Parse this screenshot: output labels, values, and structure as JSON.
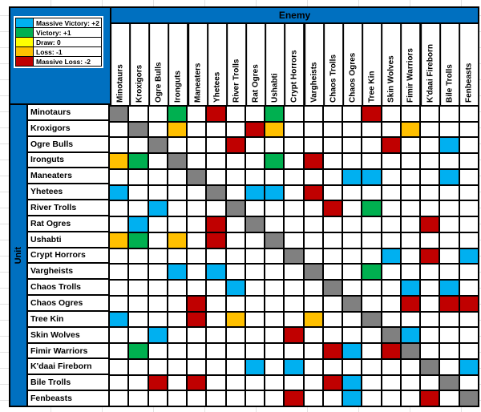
{
  "headers": {
    "enemy": "Enemy",
    "unit": "Unit"
  },
  "legend": {
    "items": [
      {
        "label": "Massive Victory: +2",
        "color": "#00B0F0"
      },
      {
        "label": "Victory: +1",
        "color": "#00B050"
      },
      {
        "label": "Draw: 0",
        "color": "#FFFF00"
      },
      {
        "label": "Loss: -1",
        "color": "#FFC000"
      },
      {
        "label": "Massive Loss: -2",
        "color": "#C00000"
      }
    ]
  },
  "palette": {
    "B": "#00B0F0",
    "G": "#00B050",
    "Y": "#FFFF00",
    "O": "#FFC000",
    "R": "#C00000",
    "S": "#808080",
    "": "#FFFFFF",
    "header_blue": "#0070C0",
    "border_black": "#000000",
    "sheet_gridline": "#E2E2E2"
  },
  "code_legend": {
    "B": "massive victory (+2)",
    "G": "victory (+1)",
    "Y": "draw (0)",
    "O": "loss (-1)",
    "R": "massive loss (-2)",
    "S": "mirror match (gray diagonal)",
    "": "blank / even matchup"
  },
  "chart_data": {
    "type": "heatmap",
    "title": "Unit vs Enemy matchup matrix",
    "xlabel": "Enemy",
    "ylabel": "Unit",
    "legend_position": "top-left",
    "x_categories": [
      "Minotaurs",
      "Kroxigors",
      "Ogre Bulls",
      "Ironguts",
      "Maneaters",
      "Yhetees",
      "River Trolls",
      "Rat Ogres",
      "Ushabti",
      "Crypt Horrors",
      "Vargheists",
      "Chaos Trolls",
      "Chaos Ogres",
      "Tree Kin",
      "Skin Wolves",
      "Fimir Warriors",
      "K'daai Fireborn",
      "Bile Trolls",
      "Fenbeasts"
    ],
    "y_categories": [
      "Minotaurs",
      "Kroxigors",
      "Ogre Bulls",
      "Ironguts",
      "Maneaters",
      "Yhetees",
      "River Trolls",
      "Rat Ogres",
      "Ushabti",
      "Crypt Horrors",
      "Vargheists",
      "Chaos Trolls",
      "Chaos Ogres",
      "Tree Kin",
      "Skin Wolves",
      "Fimir Warriors",
      "K'daai Fireborn",
      "Bile Trolls",
      "Fenbeasts"
    ],
    "matrix": [
      [
        "S",
        "",
        "",
        "G",
        "",
        "R",
        "",
        "",
        "G",
        "",
        "",
        "",
        "",
        "R",
        "",
        "",
        "",
        "",
        ""
      ],
      [
        "",
        "S",
        "",
        "O",
        "",
        "",
        "",
        "R",
        "O",
        "",
        "",
        "",
        "",
        "",
        "",
        "O",
        "",
        "",
        ""
      ],
      [
        "",
        "",
        "S",
        "",
        "",
        "",
        "R",
        "",
        "",
        "",
        "",
        "",
        "",
        "",
        "R",
        "",
        "",
        "B",
        ""
      ],
      [
        "O",
        "G",
        "",
        "S",
        "",
        "",
        "",
        "",
        "G",
        "",
        "R",
        "",
        "",
        "",
        "",
        "",
        "",
        "",
        ""
      ],
      [
        "",
        "",
        "",
        "",
        "S",
        "",
        "",
        "",
        "",
        "",
        "",
        "",
        "B",
        "B",
        "",
        "",
        "",
        "B",
        ""
      ],
      [
        "B",
        "",
        "",
        "",
        "",
        "S",
        "",
        "B",
        "B",
        "",
        "R",
        "",
        "",
        "",
        "",
        "",
        "",
        "",
        ""
      ],
      [
        "",
        "",
        "B",
        "",
        "",
        "",
        "S",
        "",
        "",
        "",
        "",
        "R",
        "",
        "G",
        "",
        "",
        "",
        "",
        ""
      ],
      [
        "",
        "B",
        "",
        "",
        "",
        "R",
        "",
        "S",
        "",
        "",
        "",
        "",
        "",
        "",
        "",
        "",
        "R",
        "",
        ""
      ],
      [
        "O",
        "G",
        "",
        "O",
        "",
        "R",
        "",
        "",
        "S",
        "",
        "",
        "",
        "",
        "",
        "",
        "",
        "",
        "",
        ""
      ],
      [
        "",
        "",
        "",
        "",
        "",
        "",
        "",
        "",
        "",
        "S",
        "",
        "",
        "",
        "",
        "B",
        "",
        "R",
        "",
        "B"
      ],
      [
        "",
        "",
        "",
        "B",
        "",
        "B",
        "",
        "",
        "",
        "",
        "S",
        "",
        "",
        "G",
        "",
        "",
        "",
        "",
        ""
      ],
      [
        "",
        "",
        "",
        "",
        "",
        "",
        "B",
        "",
        "",
        "",
        "",
        "S",
        "",
        "",
        "",
        "B",
        "",
        "B",
        ""
      ],
      [
        "",
        "",
        "",
        "",
        "R",
        "",
        "",
        "",
        "",
        "",
        "",
        "",
        "S",
        "",
        "",
        "R",
        "",
        "R",
        "R"
      ],
      [
        "B",
        "",
        "",
        "",
        "R",
        "",
        "O",
        "",
        "",
        "",
        "O",
        "",
        "",
        "S",
        "",
        "",
        "",
        "",
        ""
      ],
      [
        "",
        "",
        "B",
        "",
        "",
        "",
        "",
        "",
        "",
        "R",
        "",
        "",
        "",
        "",
        "S",
        "B",
        "",
        "",
        ""
      ],
      [
        "",
        "G",
        "",
        "",
        "",
        "",
        "",
        "",
        "",
        "",
        "",
        "R",
        "B",
        "",
        "R",
        "S",
        "",
        "",
        ""
      ],
      [
        "",
        "",
        "",
        "",
        "",
        "",
        "",
        "B",
        "",
        "B",
        "",
        "",
        "",
        "",
        "",
        "",
        "S",
        "",
        "B"
      ],
      [
        "",
        "",
        "R",
        "",
        "R",
        "",
        "",
        "",
        "",
        "",
        "",
        "R",
        "B",
        "",
        "",
        "",
        "",
        "S",
        ""
      ],
      [
        "",
        "",
        "",
        "",
        "",
        "",
        "",
        "",
        "",
        "R",
        "",
        "",
        "B",
        "",
        "",
        "",
        "R",
        "",
        "S"
      ]
    ]
  }
}
